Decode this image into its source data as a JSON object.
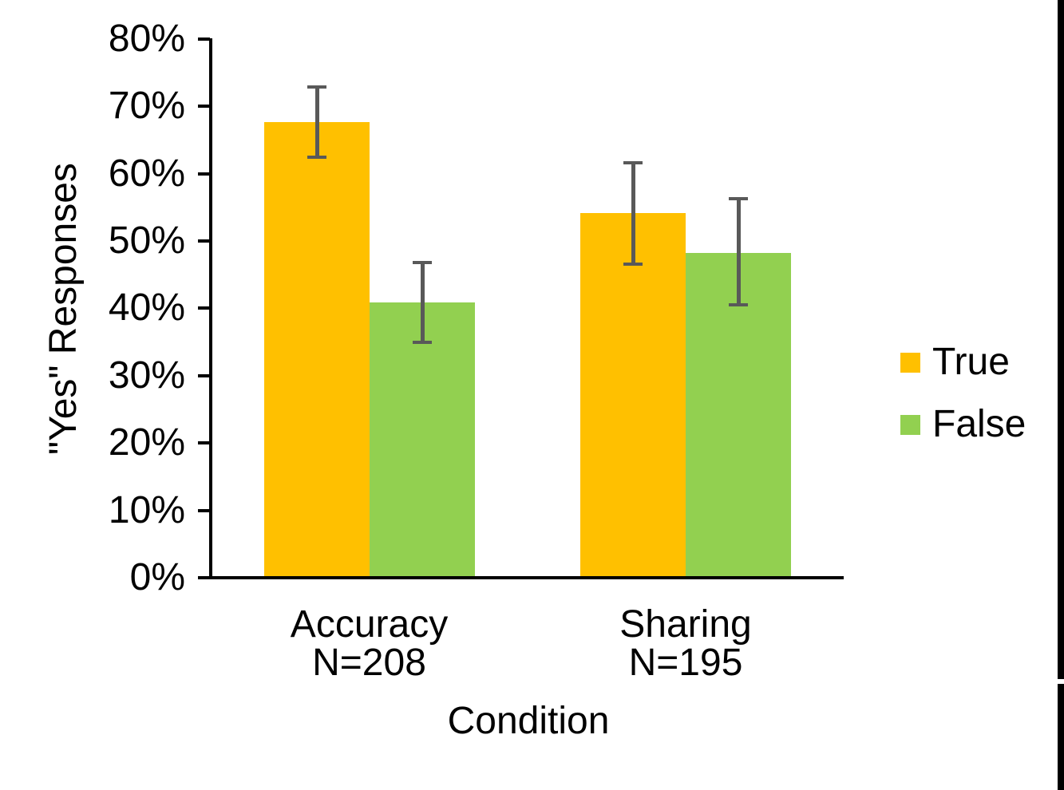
{
  "chart_data": {
    "type": "bar",
    "title": "",
    "xlabel": "Condition",
    "ylabel": "\"Yes\" Responses",
    "categories": [
      {
        "label": "Accuracy",
        "sublabel": "N=208"
      },
      {
        "label": "Sharing",
        "sublabel": "N=195"
      }
    ],
    "series": [
      {
        "name": "True",
        "color": "#FFC000",
        "values": [
          67.7,
          54.1
        ],
        "error_low": [
          62.4,
          46.6
        ],
        "error_high": [
          72.9,
          61.6
        ]
      },
      {
        "name": "False",
        "color": "#92D050",
        "values": [
          40.9,
          48.2
        ],
        "error_low": [
          34.9,
          40.5
        ],
        "error_high": [
          46.8,
          56.3
        ]
      }
    ],
    "ylim": [
      0,
      80
    ],
    "ytick_step": 10,
    "ytick_labels": [
      "0%",
      "10%",
      "20%",
      "30%",
      "40%",
      "50%",
      "60%",
      "70%",
      "80%"
    ],
    "grid": false,
    "legend_position": "right",
    "colors": {
      "error_bar": "#595959",
      "axis": "#000000",
      "text": "#000000",
      "background": "#FFFFFF",
      "screen_edge_strip": "#000000"
    }
  }
}
